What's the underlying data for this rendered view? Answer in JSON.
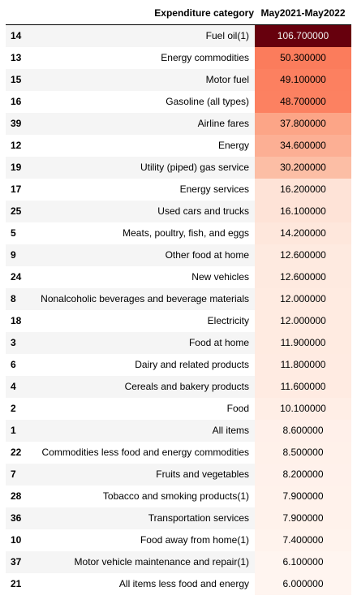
{
  "chart_data": {
    "type": "table",
    "columns": [
      "",
      "Expenditure category",
      "May2021-May2022"
    ],
    "rows": [
      {
        "index": "14",
        "category": "Fuel oil(1)",
        "value": "106.700000"
      },
      {
        "index": "13",
        "category": "Energy commodities",
        "value": "50.300000"
      },
      {
        "index": "15",
        "category": "Motor fuel",
        "value": "49.100000"
      },
      {
        "index": "16",
        "category": "Gasoline (all types)",
        "value": "48.700000"
      },
      {
        "index": "39",
        "category": "Airline fares",
        "value": "37.800000"
      },
      {
        "index": "12",
        "category": "Energy",
        "value": "34.600000"
      },
      {
        "index": "19",
        "category": "Utility (piped) gas service",
        "value": "30.200000"
      },
      {
        "index": "17",
        "category": "Energy services",
        "value": "16.200000"
      },
      {
        "index": "25",
        "category": "Used cars and trucks",
        "value": "16.100000"
      },
      {
        "index": "5",
        "category": "Meats, poultry, fish, and eggs",
        "value": "14.200000"
      },
      {
        "index": "9",
        "category": "Other food at home",
        "value": "12.600000"
      },
      {
        "index": "24",
        "category": "New vehicles",
        "value": "12.600000"
      },
      {
        "index": "8",
        "category": "Nonalcoholic beverages and beverage materials",
        "value": "12.000000"
      },
      {
        "index": "18",
        "category": "Electricity",
        "value": "12.000000"
      },
      {
        "index": "3",
        "category": "Food at home",
        "value": "11.900000"
      },
      {
        "index": "6",
        "category": "Dairy and related products",
        "value": "11.800000"
      },
      {
        "index": "4",
        "category": "Cereals and bakery products",
        "value": "11.600000"
      },
      {
        "index": "2",
        "category": "Food",
        "value": "10.100000"
      },
      {
        "index": "1",
        "category": "All items",
        "value": "8.600000"
      },
      {
        "index": "22",
        "category": "Commodities less food and energy commodities",
        "value": "8.500000"
      },
      {
        "index": "7",
        "category": "Fruits and vegetables",
        "value": "8.200000"
      },
      {
        "index": "28",
        "category": "Tobacco and smoking products(1)",
        "value": "7.900000"
      },
      {
        "index": "36",
        "category": "Transportation services",
        "value": "7.900000"
      },
      {
        "index": "10",
        "category": "Food away from home(1)",
        "value": "7.400000"
      },
      {
        "index": "37",
        "category": "Motor vehicle maintenance and repair(1)",
        "value": "6.100000"
      },
      {
        "index": "21",
        "category": "All items less food and energy",
        "value": "6.000000"
      }
    ],
    "colormap": "Reds",
    "value_range": [
      6.0,
      106.7
    ]
  }
}
